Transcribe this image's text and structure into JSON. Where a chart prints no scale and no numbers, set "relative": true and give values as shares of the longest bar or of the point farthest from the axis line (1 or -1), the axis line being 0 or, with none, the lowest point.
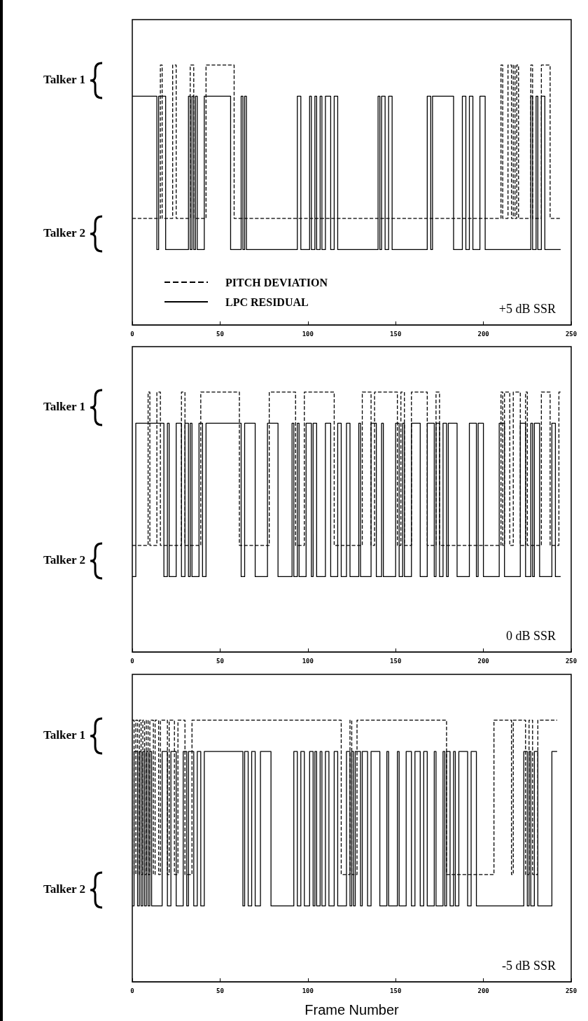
{
  "chart_data": [
    {
      "type": "step",
      "relative": true,
      "xlim": [
        0,
        250
      ],
      "xticks": [
        0,
        50,
        100,
        150,
        200,
        250
      ],
      "grid": false,
      "legend": "bottom left",
      "marker": "none",
      "annotations": [
        "Talker 1",
        "Talker 2",
        "+5 dB SSR"
      ],
      "series": [
        {
          "name": "PITCH DEVIATION",
          "color": "#000000",
          "line_style": "dashed",
          "x": [
            0,
            16,
            17,
            23,
            25,
            33,
            35,
            42,
            58,
            210,
            211,
            214,
            216,
            217,
            218,
            219,
            220,
            227,
            228,
            233,
            238,
            244
          ],
          "values": [
            0.41,
            1,
            0.41,
            1,
            0.41,
            1,
            0.41,
            1,
            0.41,
            1,
            0.41,
            1,
            0.41,
            1,
            0.41,
            1,
            0.41,
            1,
            0.41,
            1,
            0.41,
            0.41
          ]
        },
        {
          "name": "LPC RESIDUAL",
          "color": "#000000",
          "line_style": "solid",
          "x": [
            0,
            14,
            15,
            19,
            32,
            33,
            34,
            35,
            36,
            37,
            41,
            56,
            62,
            63,
            64,
            65,
            94,
            96,
            101,
            102,
            104,
            105,
            107,
            108,
            110,
            113,
            115,
            117,
            140,
            141,
            142,
            144,
            146,
            148,
            168,
            170,
            171,
            183,
            188,
            190,
            192,
            194,
            198,
            201,
            227,
            228,
            230,
            231,
            233,
            235,
            244
          ],
          "values": [
            0.88,
            0.29,
            0.88,
            0.29,
            0.88,
            0.29,
            0.88,
            0.29,
            0.88,
            0.29,
            0.88,
            0.29,
            0.88,
            0.29,
            0.88,
            0.29,
            0.88,
            0.29,
            0.88,
            0.29,
            0.88,
            0.29,
            0.88,
            0.29,
            0.88,
            0.29,
            0.88,
            0.29,
            0.88,
            0.29,
            0.88,
            0.29,
            0.88,
            0.29,
            0.88,
            0.29,
            0.88,
            0.29,
            0.88,
            0.29,
            0.88,
            0.29,
            0.88,
            0.29,
            0.88,
            0.29,
            0.88,
            0.29,
            0.88,
            0.29,
            0.29
          ]
        }
      ]
    },
    {
      "type": "step",
      "relative": true,
      "xlim": [
        0,
        250
      ],
      "xticks": [
        0,
        50,
        100,
        150,
        200,
        250
      ],
      "grid": false,
      "marker": "none",
      "annotations": [
        "Talker 1",
        "Talker 2",
        "0 dB SSR"
      ],
      "series": [
        {
          "color": "#000000",
          "line_style": "dashed",
          "x": [
            0,
            9,
            10,
            14,
            16,
            28,
            30,
            39,
            61,
            78,
            93,
            98,
            115,
            131,
            136,
            138,
            151,
            153,
            155,
            159,
            168,
            173,
            175,
            210,
            211,
            212,
            215,
            217,
            221,
            224,
            225,
            233,
            238,
            243,
            244
          ],
          "values": [
            0.41,
            1,
            0.41,
            1,
            0.41,
            1,
            0.41,
            1,
            0.41,
            1,
            0.41,
            1,
            0.41,
            1,
            0.41,
            1,
            0.41,
            1,
            0.41,
            1,
            0.41,
            1,
            0.41,
            1,
            0.41,
            1,
            0.41,
            1,
            0.41,
            1,
            0.41,
            1,
            0.41,
            1,
            1
          ]
        },
        {
          "color": "#000000",
          "line_style": "solid",
          "x": [
            0,
            2,
            18,
            20,
            21,
            25,
            28,
            30,
            32,
            33,
            34,
            38,
            40,
            42,
            62,
            64,
            70,
            77,
            83,
            91,
            92,
            94,
            95,
            99,
            102,
            103,
            105,
            110,
            113,
            117,
            119,
            122,
            124,
            129,
            130,
            136,
            139,
            142,
            143,
            150,
            152,
            154,
            155,
            159,
            164,
            168,
            172,
            173,
            175,
            177,
            179,
            180,
            185,
            192,
            196,
            197,
            200,
            209,
            212,
            221,
            224,
            227,
            228,
            229,
            232,
            239,
            241,
            244
          ],
          "values": [
            0.29,
            0.88,
            0.29,
            0.88,
            0.29,
            0.88,
            0.29,
            0.88,
            0.29,
            0.88,
            0.29,
            0.88,
            0.29,
            0.88,
            0.29,
            0.88,
            0.29,
            0.88,
            0.29,
            0.88,
            0.29,
            0.88,
            0.29,
            0.88,
            0.29,
            0.88,
            0.29,
            0.88,
            0.29,
            0.88,
            0.29,
            0.88,
            0.29,
            0.88,
            0.29,
            0.88,
            0.29,
            0.88,
            0.29,
            0.88,
            0.29,
            0.88,
            0.29,
            0.88,
            0.29,
            0.88,
            0.29,
            0.88,
            0.29,
            0.88,
            0.29,
            0.88,
            0.29,
            0.88,
            0.29,
            0.88,
            0.29,
            0.88,
            0.29,
            0.88,
            0.29,
            0.88,
            0.29,
            0.88,
            0.29,
            0.88,
            0.29,
            0.29
          ]
        }
      ]
    },
    {
      "type": "step",
      "relative": true,
      "xlim": [
        0,
        250
      ],
      "xticks": [
        0,
        50,
        100,
        150,
        200,
        250
      ],
      "grid": false,
      "marker": "none",
      "xlabel": "Frame Number",
      "annotations": [
        "Talker 1",
        "Talker 2",
        "-5 dB SSR"
      ],
      "series": [
        {
          "color": "#000000",
          "line_style": "dashed",
          "x": [
            0,
            1,
            2,
            3,
            4,
            5,
            6,
            7,
            8,
            9,
            10,
            12,
            13,
            15,
            16,
            20,
            21,
            24,
            26,
            30,
            34,
            119,
            124,
            125,
            128,
            179,
            206,
            216,
            217,
            224,
            226,
            228,
            231,
            242
          ],
          "values": [
            1,
            0.41,
            1,
            0.41,
            1,
            0.41,
            1,
            0.41,
            1,
            0.41,
            1,
            0.41,
            1,
            0.41,
            1,
            0.41,
            1,
            0.41,
            1,
            0.41,
            1,
            0.41,
            1,
            0.41,
            1,
            0.41,
            1,
            0.41,
            1,
            0.41,
            1,
            0.41,
            1,
            1
          ]
        },
        {
          "color": "#000000",
          "line_style": "solid",
          "x": [
            0,
            1,
            3,
            4,
            5,
            6,
            7,
            8,
            9,
            10,
            11,
            17,
            20,
            22,
            25,
            29,
            31,
            32,
            35,
            37,
            39,
            41,
            63,
            64,
            66,
            68,
            70,
            73,
            79,
            92,
            94,
            96,
            98,
            101,
            103,
            104,
            105,
            107,
            108,
            110,
            112,
            115,
            117,
            122,
            124,
            125,
            126,
            127,
            130,
            131,
            134,
            136,
            141,
            145,
            146,
            151,
            152,
            156,
            159,
            161,
            164,
            166,
            168,
            172,
            173,
            177,
            178,
            179,
            181,
            183,
            184,
            186,
            191,
            193,
            196,
            223,
            225,
            226,
            227,
            229,
            231,
            239,
            242
          ],
          "values": [
            0.29,
            0.88,
            0.29,
            0.88,
            0.29,
            0.88,
            0.29,
            0.88,
            0.29,
            0.88,
            0.29,
            0.88,
            0.29,
            0.88,
            0.29,
            0.88,
            0.29,
            0.88,
            0.29,
            0.88,
            0.29,
            0.88,
            0.29,
            0.88,
            0.29,
            0.88,
            0.29,
            0.88,
            0.29,
            0.88,
            0.29,
            0.88,
            0.29,
            0.88,
            0.29,
            0.88,
            0.29,
            0.88,
            0.29,
            0.88,
            0.29,
            0.88,
            0.29,
            0.88,
            0.29,
            0.88,
            0.29,
            0.88,
            0.29,
            0.88,
            0.29,
            0.88,
            0.29,
            0.88,
            0.29,
            0.88,
            0.29,
            0.88,
            0.29,
            0.88,
            0.29,
            0.88,
            0.29,
            0.88,
            0.29,
            0.88,
            0.29,
            0.88,
            0.29,
            0.88,
            0.29,
            0.88,
            0.29,
            0.88,
            0.29,
            0.88,
            0.29,
            0.88,
            0.29,
            0.88,
            0.29,
            0.88,
            0.88
          ]
        }
      ]
    }
  ]
}
